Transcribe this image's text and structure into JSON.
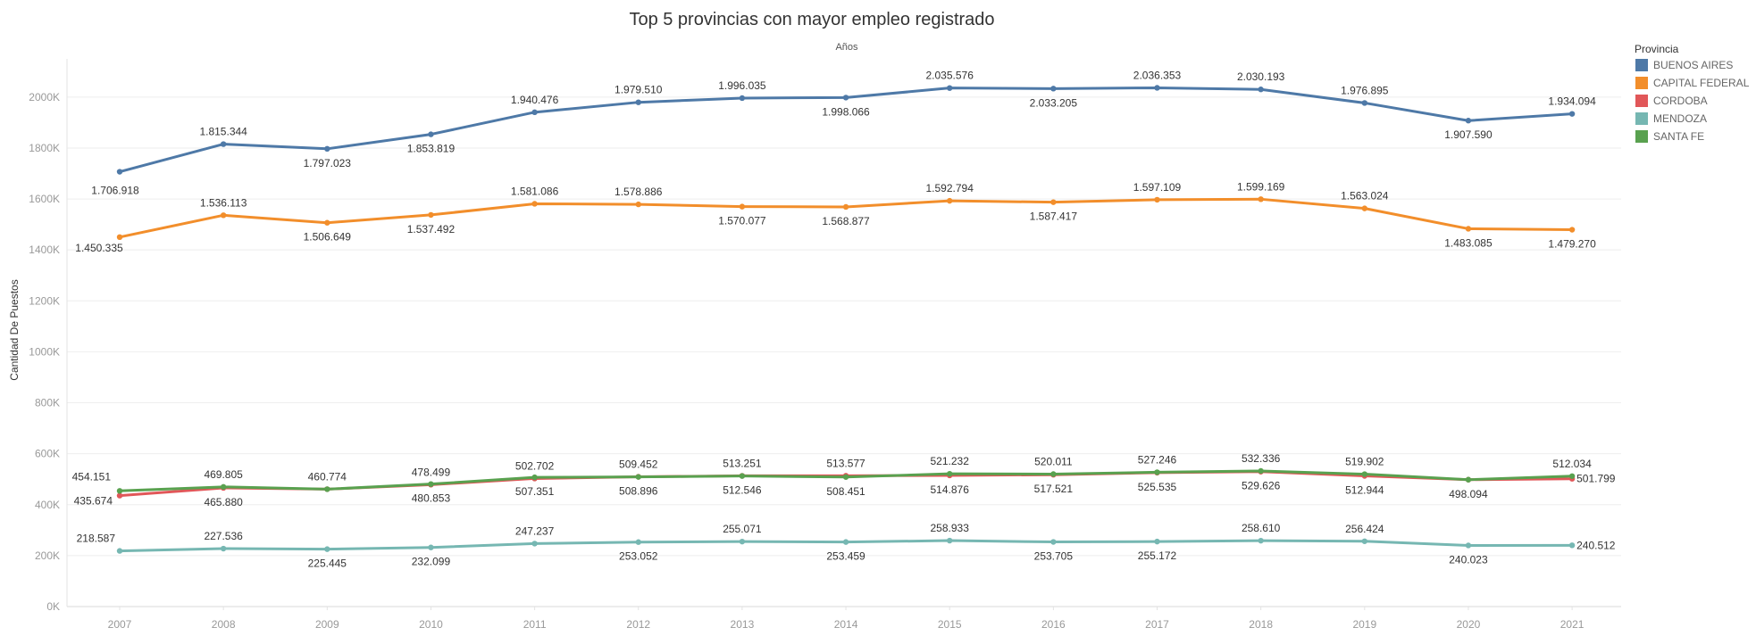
{
  "chart_data": {
    "type": "line",
    "title": "Top 5 provincias con mayor empleo registrado",
    "top_axis_title": "Años",
    "ylabel": "Cantidad De Puestos",
    "x": [
      "2007",
      "2008",
      "2009",
      "2010",
      "2011",
      "2012",
      "2013",
      "2014",
      "2015",
      "2016",
      "2017",
      "2018",
      "2019",
      "2020",
      "2021"
    ],
    "y_ticks": [
      "0K",
      "200K",
      "400K",
      "600K",
      "800K",
      "1000K",
      "1200K",
      "1400K",
      "1600K",
      "1800K",
      "2000K"
    ],
    "ylim": [
      0,
      2150000
    ],
    "grid": true,
    "legend": {
      "title": "Provincia",
      "position": "right"
    },
    "series": [
      {
        "name": "BUENOS AIRES",
        "color": "#4e79a7",
        "values": [
          1706918,
          1815344,
          1797023,
          1853819,
          1940476,
          1979510,
          1996035,
          1998066,
          2035576,
          2033205,
          2036353,
          2030193,
          1976895,
          1907590,
          1934094
        ],
        "labels": [
          "1.706.918",
          "1.815.344",
          "1.797.023",
          "1.853.819",
          "1.940.476",
          "1.979.510",
          "1.996.035",
          "1.998.066",
          "2.035.576",
          "2.033.205",
          "2.036.353",
          "2.030.193",
          "1.976.895",
          "1.907.590",
          "1.934.094"
        ]
      },
      {
        "name": "CAPITAL FEDERAL",
        "color": "#f28e2b",
        "values": [
          1450335,
          1536113,
          1506649,
          1537492,
          1581086,
          1578886,
          1570077,
          1568877,
          1592794,
          1587417,
          1597109,
          1599169,
          1563024,
          1483085,
          1479270
        ],
        "labels": [
          "1.450.335",
          "1.536.113",
          "1.506.649",
          "1.537.492",
          "1.581.086",
          "1.578.886",
          "1.570.077",
          "1.568.877",
          "1.592.794",
          "1.587.417",
          "1.597.109",
          "1.599.169",
          "1.563.024",
          "1.483.085",
          "1.479.270"
        ]
      },
      {
        "name": "CORDOBA",
        "color": "#e15759",
        "values": [
          435674,
          465880,
          460774,
          478499,
          502702,
          509452,
          513251,
          513577,
          514876,
          517521,
          525535,
          529626,
          512944,
          498094,
          501799
        ],
        "labels": [
          "435.674",
          "465.880",
          "460.774",
          "478.499",
          "502.702",
          "509.452",
          "513.251",
          "513.577",
          "514.876",
          "517.521",
          "525.535",
          "529.626",
          "512.944",
          "498.094",
          "501.799"
        ]
      },
      {
        "name": "MENDOZA",
        "color": "#76b7b2",
        "values": [
          218587,
          227536,
          225445,
          232099,
          247237,
          253052,
          255071,
          253459,
          258933,
          253705,
          255172,
          258610,
          256424,
          240023,
          240512
        ],
        "labels": [
          "218.587",
          "227.536",
          "225.445",
          "232.099",
          "247.237",
          "253.052",
          "255.071",
          "253.459",
          "258.933",
          "253.705",
          "255.172",
          "258.610",
          "256.424",
          "240.023",
          "240.512"
        ]
      },
      {
        "name": "SANTA FE",
        "color": "#59a14f",
        "values": [
          454151,
          469805,
          460774,
          480853,
          507351,
          508896,
          512546,
          508451,
          521232,
          520011,
          527246,
          532336,
          519902,
          498094,
          512034
        ],
        "labels": [
          "454.151",
          "469.805",
          "",
          "480.853",
          "507.351",
          "508.896",
          "512.546",
          "508.451",
          "521.232",
          "520.011",
          "527.246",
          "532.336",
          "519.902",
          "",
          "512.034"
        ]
      }
    ]
  }
}
